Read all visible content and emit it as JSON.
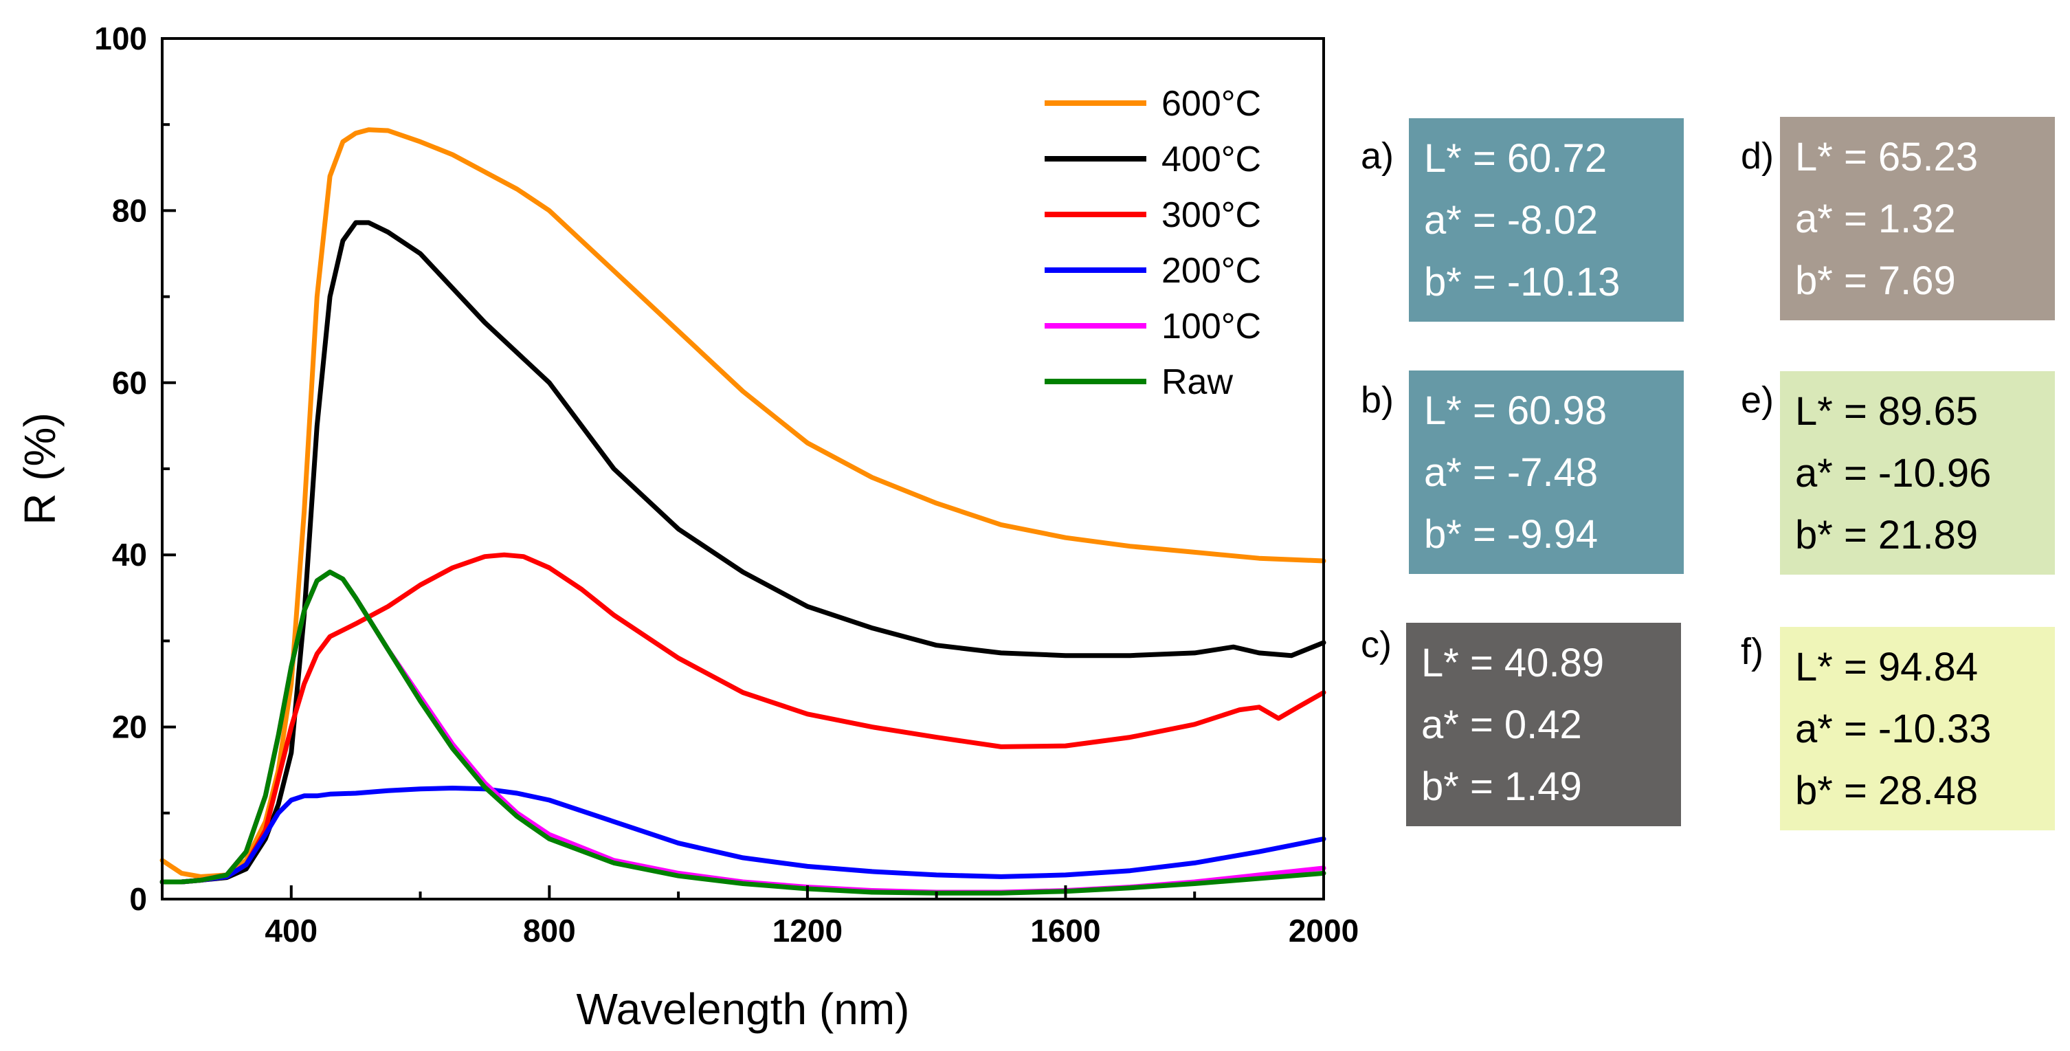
{
  "chart_data": {
    "type": "line",
    "xlabel": "Wavelength (nm)",
    "ylabel": "R (%)",
    "xlim": [
      200,
      2000
    ],
    "ylim": [
      0,
      100
    ],
    "x_ticks": [
      400,
      800,
      1200,
      1600,
      2000
    ],
    "y_ticks": [
      0,
      20,
      40,
      60,
      80,
      100
    ],
    "grid": false,
    "legend_position": "top-right",
    "series": [
      {
        "name": "600°C",
        "color": "#ff8c00",
        "x": [
          200,
          230,
          260,
          300,
          330,
          360,
          380,
          400,
          420,
          440,
          460,
          480,
          500,
          520,
          550,
          600,
          650,
          700,
          750,
          800,
          900,
          1000,
          1100,
          1200,
          1300,
          1400,
          1500,
          1600,
          1700,
          1800,
          1900,
          2000
        ],
        "y": [
          4.5,
          3.0,
          2.6,
          2.8,
          4.5,
          9,
          15,
          25,
          45,
          70,
          84,
          88,
          89,
          89.4,
          89.3,
          88,
          86.5,
          84.5,
          82.5,
          80,
          73,
          66,
          59,
          53,
          49,
          46,
          43.5,
          42,
          41,
          40.3,
          39.6,
          39.3
        ]
      },
      {
        "name": "400°C",
        "color": "#000000",
        "x": [
          200,
          230,
          260,
          300,
          330,
          360,
          380,
          400,
          420,
          440,
          460,
          480,
          500,
          520,
          550,
          600,
          650,
          700,
          800,
          900,
          1000,
          1100,
          1200,
          1300,
          1400,
          1500,
          1600,
          1700,
          1800,
          1860,
          1900,
          1950,
          2000
        ],
        "y": [
          2.0,
          2.0,
          2.2,
          2.5,
          3.5,
          7,
          11,
          17,
          33,
          55,
          70,
          76.5,
          78.6,
          78.6,
          77.5,
          75,
          71,
          67,
          60,
          50,
          43,
          38,
          34,
          31.5,
          29.5,
          28.6,
          28.3,
          28.3,
          28.6,
          29.3,
          28.6,
          28.3,
          29.8
        ]
      },
      {
        "name": "300°C",
        "color": "#ff0000",
        "x": [
          200,
          230,
          260,
          300,
          330,
          360,
          380,
          400,
          420,
          440,
          460,
          500,
          550,
          600,
          650,
          700,
          730,
          760,
          800,
          850,
          900,
          1000,
          1100,
          1200,
          1300,
          1400,
          1500,
          1600,
          1700,
          1800,
          1870,
          1900,
          1930,
          1960,
          2000
        ],
        "y": [
          2.0,
          2.0,
          2.2,
          2.6,
          4,
          8,
          14,
          20,
          25,
          28.5,
          30.5,
          32,
          34,
          36.5,
          38.5,
          39.8,
          40,
          39.8,
          38.5,
          36,
          33,
          28,
          24,
          21.5,
          20,
          18.8,
          17.7,
          17.8,
          18.8,
          20.3,
          22,
          22.3,
          21,
          22.3,
          24
        ]
      },
      {
        "name": "200°C",
        "color": "#0000ff",
        "x": [
          200,
          230,
          260,
          300,
          330,
          360,
          380,
          400,
          420,
          440,
          460,
          500,
          550,
          600,
          650,
          700,
          750,
          800,
          900,
          1000,
          1100,
          1200,
          1300,
          1400,
          1500,
          1600,
          1700,
          1800,
          1900,
          2000
        ],
        "y": [
          2.0,
          2.0,
          2.2,
          2.6,
          4,
          7.5,
          10,
          11.5,
          12,
          12,
          12.2,
          12.3,
          12.6,
          12.8,
          12.9,
          12.8,
          12.3,
          11.5,
          9,
          6.5,
          4.8,
          3.8,
          3.2,
          2.8,
          2.6,
          2.8,
          3.3,
          4.2,
          5.5,
          7.0
        ]
      },
      {
        "name": "100°C",
        "color": "#ff00ff",
        "x": [
          200,
          230,
          260,
          300,
          330,
          360,
          380,
          400,
          420,
          440,
          460,
          480,
          500,
          550,
          600,
          650,
          700,
          750,
          800,
          900,
          1000,
          1100,
          1200,
          1300,
          1400,
          1500,
          1600,
          1700,
          1800,
          1900,
          2000
        ],
        "y": [
          2.0,
          2.0,
          2.2,
          2.8,
          5.5,
          12,
          19,
          27,
          33.5,
          37,
          38,
          37.2,
          35,
          29,
          23.5,
          18,
          13.5,
          10,
          7.5,
          4.5,
          3,
          2,
          1.4,
          1.0,
          0.8,
          0.8,
          1.0,
          1.4,
          2.0,
          2.8,
          3.6
        ]
      },
      {
        "name": "Raw",
        "color": "#008000",
        "x": [
          200,
          230,
          260,
          300,
          330,
          360,
          380,
          400,
          420,
          440,
          460,
          480,
          500,
          550,
          600,
          650,
          700,
          750,
          800,
          900,
          1000,
          1100,
          1200,
          1300,
          1400,
          1500,
          1600,
          1700,
          1800,
          1900,
          2000
        ],
        "y": [
          2.0,
          2.0,
          2.2,
          2.8,
          5.5,
          12,
          19,
          27,
          33.5,
          37,
          38,
          37.2,
          35,
          29,
          23,
          17.5,
          13,
          9.6,
          7,
          4.2,
          2.7,
          1.8,
          1.2,
          0.8,
          0.7,
          0.7,
          0.9,
          1.3,
          1.8,
          2.4,
          3.0
        ]
      }
    ]
  },
  "color_boxes": [
    {
      "letter": "a)",
      "L": "L* = 60.72",
      "a": "a* = -8.02",
      "b": "b* = -10.13",
      "bg": "#6699a6",
      "fg": "#ffffff"
    },
    {
      "letter": "b)",
      "L": "L* = 60.98",
      "a": "a* = -7.48",
      "b": "b* = -9.94",
      "bg": "#6699a6",
      "fg": "#ffffff"
    },
    {
      "letter": "c)",
      "L": "L* = 40.89",
      "a": "a* = 0.42",
      "b": "b* = 1.49",
      "bg": "#636160",
      "fg": "#ffffff"
    },
    {
      "letter": "d)",
      "L": "L* = 65.23",
      "a": "a* = 1.32",
      "b": "b* = 7.69",
      "bg": "#a89b90",
      "fg": "#ffffff"
    },
    {
      "letter": "e)",
      "L": "L* = 89.65",
      "a": "a* = -10.96",
      "b": "b* = 21.89",
      "bg": "#d9e8b8",
      "fg": "#000000"
    },
    {
      "letter": "f)",
      "L": "L* = 94.84",
      "a": "a* = -10.33",
      "b": "b* = 28.48",
      "bg": "#eff5b8",
      "fg": "#000000"
    }
  ]
}
